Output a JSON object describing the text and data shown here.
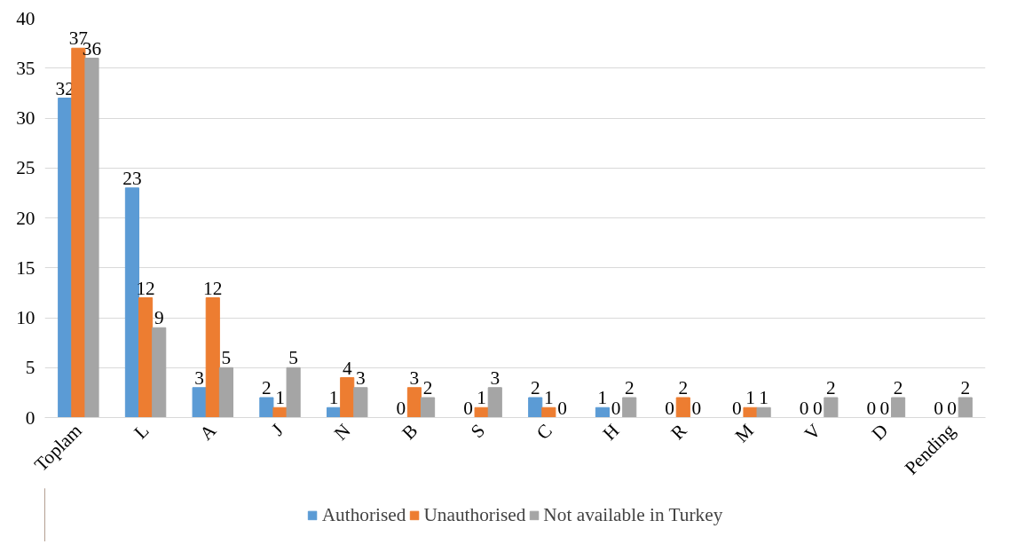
{
  "chart_data": {
    "type": "bar",
    "categories": [
      "Toplam",
      "L",
      "A",
      "J",
      "N",
      "B",
      "S",
      "C",
      "H",
      "R",
      "M",
      "V",
      "D",
      "Pending"
    ],
    "series": [
      {
        "name": "Authorised",
        "color": "#5b9bd5",
        "values": [
          32,
          23,
          3,
          2,
          1,
          0,
          0,
          2,
          1,
          0,
          0,
          0,
          0,
          0
        ]
      },
      {
        "name": "Unauthorised",
        "color": "#ed7d31",
        "values": [
          37,
          12,
          12,
          1,
          4,
          3,
          1,
          1,
          0,
          2,
          1,
          0,
          0,
          0
        ]
      },
      {
        "name": "Not available in Turkey",
        "color": "#a5a5a5",
        "values": [
          36,
          9,
          5,
          5,
          3,
          2,
          3,
          0,
          2,
          0,
          1,
          2,
          2,
          2
        ]
      }
    ],
    "ylim": [
      0,
      40
    ],
    "yticks": [
      0,
      5,
      10,
      15,
      20,
      25,
      30,
      35,
      40
    ],
    "grid": "y",
    "legend": "bottom",
    "data_labels": true
  }
}
